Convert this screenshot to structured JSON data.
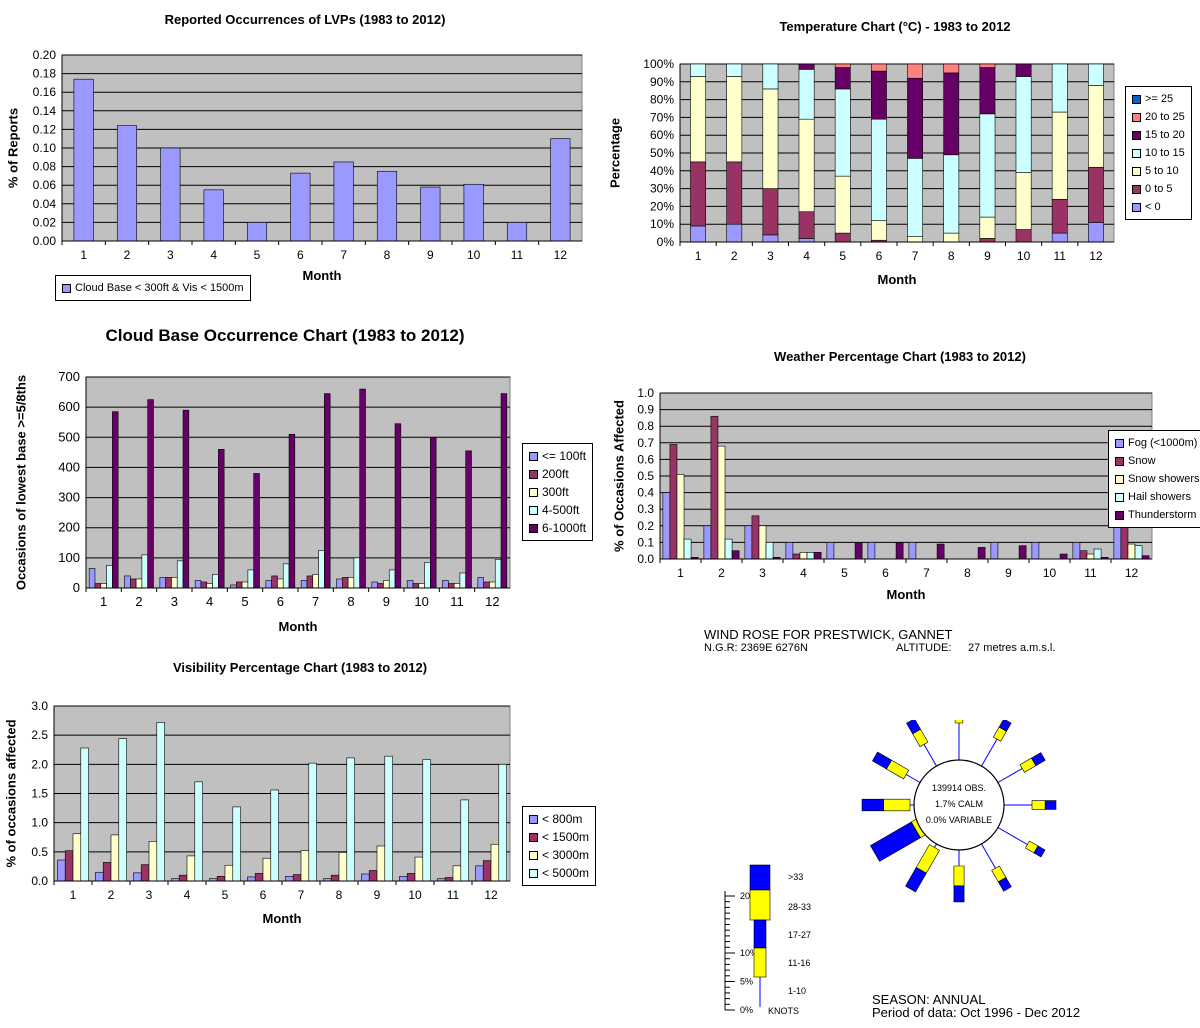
{
  "colors": {
    "plot_bg": "#c0c0c0",
    "grid": "#000000",
    "lilac": "#9999ff",
    "plum": "#993366",
    "cream": "#ffffcc",
    "paleblue": "#ccffff",
    "purple": "#660066",
    "salmon": "#ff8080",
    "navy": "#0066cc",
    "rose_blue": "#0000ff",
    "rose_yellow": "#ffff00"
  },
  "chart_data": [
    {
      "id": "lvp",
      "type": "bar",
      "title": "Reported Occurrences of LVPs (1983 to 2012)",
      "xlabel": "Month",
      "ylabel": "% of Reports",
      "categories": [
        "1",
        "2",
        "3",
        "4",
        "5",
        "6",
        "7",
        "8",
        "9",
        "10",
        "11",
        "12"
      ],
      "ylim": [
        0,
        0.2
      ],
      "yticks": [
        "0.00",
        "0.02",
        "0.04",
        "0.06",
        "0.08",
        "0.10",
        "0.12",
        "0.14",
        "0.16",
        "0.18",
        "0.20"
      ],
      "series": [
        {
          "name": "Cloud Base < 300ft & Vis < 1500m",
          "color": "#9999ff",
          "values": [
            0.174,
            0.124,
            0.1,
            0.055,
            0.02,
            0.073,
            0.085,
            0.075,
            0.058,
            0.061,
            0.02,
            0.11
          ]
        }
      ],
      "legend_position": "bottom-left"
    },
    {
      "id": "temp",
      "type": "bar",
      "stacked": true,
      "title": "Temperature Chart (°C) - 1983 to 2012",
      "xlabel": "Month",
      "ylabel": "Percentage",
      "categories": [
        "1",
        "2",
        "3",
        "4",
        "5",
        "6",
        "7",
        "8",
        "9",
        "10",
        "11",
        "12"
      ],
      "ylim": [
        0,
        100
      ],
      "yticks": [
        "0%",
        "10%",
        "20%",
        "30%",
        "40%",
        "50%",
        "60%",
        "70%",
        "80%",
        "90%",
        "100%"
      ],
      "series": [
        {
          "name": "< 0",
          "color": "#9999ff",
          "values": [
            9,
            10,
            4,
            2,
            0,
            0,
            0,
            0,
            0,
            0,
            5,
            11
          ]
        },
        {
          "name": "0 to 5",
          "color": "#993366",
          "values": [
            36,
            35,
            26,
            15,
            5,
            1,
            0,
            0,
            2,
            7,
            19,
            31
          ]
        },
        {
          "name": "5 to 10",
          "color": "#ffffcc",
          "values": [
            48,
            48,
            56,
            52,
            32,
            11,
            3,
            5,
            12,
            32,
            49,
            46
          ]
        },
        {
          "name": "10 to 15",
          "color": "#ccffff",
          "values": [
            7,
            7,
            14,
            28,
            49,
            57,
            44,
            44,
            58,
            54,
            27,
            12
          ]
        },
        {
          "name": "15 to 20",
          "color": "#660066",
          "values": [
            0,
            0,
            0,
            3,
            12,
            27,
            45,
            46,
            26,
            7,
            0,
            0
          ]
        },
        {
          "name": "20 to 25",
          "color": "#ff8080",
          "values": [
            0,
            0,
            0,
            0,
            2,
            4,
            8,
            5,
            2,
            0,
            0,
            0
          ]
        },
        {
          "name": ">= 25",
          "color": "#0066cc",
          "values": [
            0,
            0,
            0,
            0,
            0,
            0,
            0,
            0,
            0,
            0,
            0,
            0
          ]
        }
      ],
      "legend_order": [
        ">= 25",
        "20 to 25",
        "15 to 20",
        "10 to 15",
        "5 to 10",
        "0 to 5",
        "< 0"
      ],
      "legend_position": "right"
    },
    {
      "id": "cloud",
      "type": "bar",
      "title": "Cloud Base Occurrence Chart (1983 to 2012)",
      "xlabel": "Month",
      "ylabel": "Occasions of lowest base >=5/8ths",
      "categories": [
        "1",
        "2",
        "3",
        "4",
        "5",
        "6",
        "7",
        "8",
        "9",
        "10",
        "11",
        "12"
      ],
      "ylim": [
        0,
        700
      ],
      "yticks": [
        "0",
        "100",
        "200",
        "300",
        "400",
        "500",
        "600",
        "700"
      ],
      "series": [
        {
          "name": "<= 100ft",
          "color": "#9999ff",
          "values": [
            65,
            40,
            35,
            25,
            10,
            25,
            25,
            30,
            20,
            25,
            25,
            35
          ]
        },
        {
          "name": "200ft",
          "color": "#993366",
          "values": [
            15,
            30,
            35,
            20,
            20,
            40,
            40,
            35,
            15,
            15,
            15,
            20
          ]
        },
        {
          "name": "300ft",
          "color": "#ffffcc",
          "values": [
            15,
            30,
            35,
            15,
            20,
            30,
            45,
            35,
            25,
            15,
            15,
            20
          ]
        },
        {
          "name": "4-500ft",
          "color": "#ccffff",
          "values": [
            75,
            110,
            90,
            45,
            60,
            80,
            125,
            100,
            60,
            85,
            50,
            95
          ]
        },
        {
          "name": "6-1000ft",
          "color": "#660066",
          "values": [
            585,
            625,
            590,
            460,
            380,
            510,
            645,
            660,
            545,
            500,
            455,
            645
          ]
        }
      ],
      "legend_position": "right"
    },
    {
      "id": "weather",
      "type": "bar",
      "title": "Weather Percentage Chart (1983 to 2012)",
      "xlabel": "Month",
      "ylabel": "% of Occasions Affected",
      "categories": [
        "1",
        "2",
        "3",
        "4",
        "5",
        "6",
        "7",
        "8",
        "9",
        "10",
        "11",
        "12"
      ],
      "ylim": [
        0,
        1.0
      ],
      "yticks": [
        "0.0",
        "0.1",
        "0.2",
        "0.3",
        "0.4",
        "0.5",
        "0.6",
        "0.7",
        "0.8",
        "0.9",
        "1.0"
      ],
      "series": [
        {
          "name": "Fog (<1000m)",
          "color": "#9999ff",
          "values": [
            0.4,
            0.2,
            0.2,
            0.1,
            0.1,
            0.1,
            0.1,
            0.0,
            0.1,
            0.1,
            0.1,
            0.3
          ]
        },
        {
          "name": "Snow",
          "color": "#993366",
          "values": [
            0.69,
            0.86,
            0.26,
            0.03,
            0.0,
            0.0,
            0.0,
            0.0,
            0.0,
            0.0,
            0.05,
            0.21
          ]
        },
        {
          "name": "Snow showers",
          "color": "#ffffcc",
          "values": [
            0.51,
            0.68,
            0.2,
            0.04,
            0.0,
            0.0,
            0.0,
            0.0,
            0.0,
            0.0,
            0.03,
            0.09
          ]
        },
        {
          "name": "Hail showers",
          "color": "#ccffff",
          "values": [
            0.12,
            0.12,
            0.1,
            0.04,
            0.0,
            0.0,
            0.0,
            0.0,
            0.0,
            0.0,
            0.06,
            0.08
          ]
        },
        {
          "name": "Thunderstorm",
          "color": "#660066",
          "values": [
            0.01,
            0.05,
            0.01,
            0.04,
            0.1,
            0.1,
            0.09,
            0.07,
            0.08,
            0.03,
            0.01,
            0.02
          ]
        }
      ],
      "legend_position": "right"
    },
    {
      "id": "vis",
      "type": "bar",
      "title": "Visibility  Percentage Chart (1983 to 2012)",
      "xlabel": "Month",
      "ylabel": "% of occasions affected",
      "categories": [
        "1",
        "2",
        "3",
        "4",
        "5",
        "6",
        "7",
        "8",
        "9",
        "10",
        "11",
        "12"
      ],
      "ylim": [
        0,
        3.0
      ],
      "yticks": [
        "0.0",
        "0.5",
        "1.0",
        "1.5",
        "2.0",
        "2.5",
        "3.0"
      ],
      "series": [
        {
          "name": "< 800m",
          "color": "#9999ff",
          "values": [
            0.36,
            0.15,
            0.14,
            0.04,
            0.04,
            0.07,
            0.08,
            0.04,
            0.12,
            0.08,
            0.04,
            0.26
          ]
        },
        {
          "name": "< 1500m",
          "color": "#993366",
          "values": [
            0.52,
            0.32,
            0.28,
            0.1,
            0.08,
            0.13,
            0.11,
            0.1,
            0.18,
            0.13,
            0.06,
            0.35
          ]
        },
        {
          "name": "< 3000m",
          "color": "#ffffcc",
          "values": [
            0.81,
            0.79,
            0.68,
            0.43,
            0.27,
            0.39,
            0.52,
            0.49,
            0.6,
            0.41,
            0.26,
            0.63
          ]
        },
        {
          "name": "< 5000m",
          "color": "#ccffff",
          "values": [
            2.28,
            2.44,
            2.72,
            1.7,
            1.27,
            1.56,
            2.02,
            2.11,
            2.14,
            2.08,
            1.39,
            2.0
          ]
        }
      ],
      "legend_position": "right"
    }
  ],
  "windrose": {
    "title": "WIND ROSE FOR PRESTWICK, GANNET",
    "ngr": "N.G.R: 2369E 6276N",
    "altitude_label": "ALTITUDE:",
    "altitude_value": "27 metres a.m.s.l.",
    "center_lines": [
      "139914 OBS.",
      "1.7% CALM",
      "0.0% VARIABLE"
    ],
    "directions": [
      {
        "deg": 0,
        "pct": 2.5
      },
      {
        "deg": 30,
        "pct": 3.5
      },
      {
        "deg": 60,
        "pct": 4.0
      },
      {
        "deg": 90,
        "pct": 4.0
      },
      {
        "deg": 120,
        "pct": 3.0
      },
      {
        "deg": 150,
        "pct": 4.0
      },
      {
        "deg": 180,
        "pct": 6.0
      },
      {
        "deg": 210,
        "pct": 8.0
      },
      {
        "deg": 240,
        "pct": 17.5
      },
      {
        "deg": 270,
        "pct": 8.0
      },
      {
        "deg": 300,
        "pct": 6.0
      },
      {
        "deg": 330,
        "pct": 4.5
      }
    ],
    "scale_labels": [
      "20%",
      "10%",
      "5%",
      "0%"
    ],
    "speed_labels": [
      ">33",
      "28-33",
      "17-27",
      "11-16",
      "1-10"
    ],
    "units": "KNOTS",
    "season": "SEASON: ANNUAL",
    "period": "Period of data: Oct 1996 - Dec 2012"
  }
}
